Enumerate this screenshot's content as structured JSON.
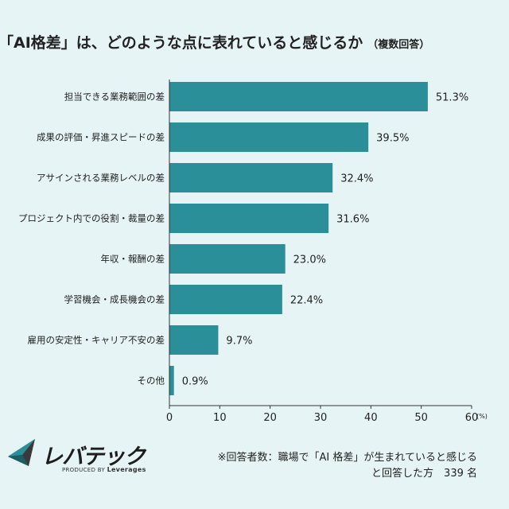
{
  "title": {
    "main": "「AI格差」は、どのような点に表れていると感じるか",
    "sub": "（複数回答）"
  },
  "colors": {
    "bar": "#2a8f98",
    "background": "#e6f4f5"
  },
  "chart_data": {
    "type": "bar",
    "orientation": "horizontal",
    "categories": [
      "担当できる業務範囲の差",
      "成果の評価・昇進スピードの差",
      "アサインされる業務レベルの差",
      "プロジェクト内での役割・裁量の差",
      "年収・報酬の差",
      "学習機会・成長機会の差",
      "雇用の安定性・キャリア不安の差",
      "その他"
    ],
    "values": [
      51.3,
      39.5,
      32.4,
      31.6,
      23.0,
      22.4,
      9.7,
      0.9
    ],
    "value_labels": [
      "51.3%",
      "39.5%",
      "32.4%",
      "31.6%",
      "23.0%",
      "22.4%",
      "9.7%",
      "0.9%"
    ],
    "xlim": [
      0,
      60
    ],
    "x_ticks": [
      "0",
      "10",
      "20",
      "30",
      "40",
      "50",
      "60"
    ],
    "x_unit": "(%)",
    "grid": false
  },
  "brand": {
    "name": "レバテック",
    "produced_by": "PRODUCED BY",
    "company": "Leverages"
  },
  "note": {
    "line1": "※回答者数：職場で「AI 格差」が生まれていると感じる",
    "line2": "と回答した方　339 名"
  }
}
